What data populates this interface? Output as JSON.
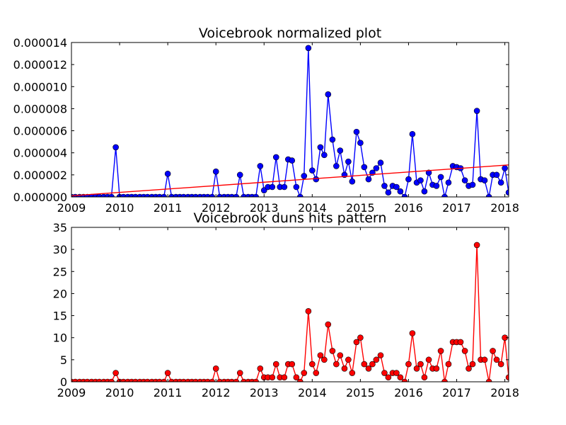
{
  "chart_data": [
    {
      "type": "line",
      "title": "Voicebrook normalized plot",
      "xlabel": "",
      "ylabel": "",
      "xlim": [
        2009.0,
        2018.08
      ],
      "ylim": [
        0,
        1.4e-05
      ],
      "x_ticks": [
        "2009",
        "2010",
        "2011",
        "2012",
        "2013",
        "2014",
        "2015",
        "2016",
        "2017",
        "2018"
      ],
      "y_ticks": [
        "0.000000",
        "0.000002",
        "0.000004",
        "0.000006",
        "0.000008",
        "0.000010",
        "0.000012",
        "0.000014"
      ],
      "grid": false,
      "legend": "none",
      "series": [
        {
          "color": "#0000ff",
          "marker": "circle",
          "points": [
            [
              2009.0,
              0
            ],
            [
              2009.08,
              0
            ],
            [
              2009.17,
              0
            ],
            [
              2009.25,
              0
            ],
            [
              2009.33,
              0
            ],
            [
              2009.42,
              0
            ],
            [
              2009.5,
              0
            ],
            [
              2009.58,
              0
            ],
            [
              2009.67,
              0
            ],
            [
              2009.75,
              0
            ],
            [
              2009.83,
              0
            ],
            [
              2009.92,
              4.5e-06
            ],
            [
              2010.0,
              0
            ],
            [
              2010.08,
              0
            ],
            [
              2010.17,
              0
            ],
            [
              2010.25,
              0
            ],
            [
              2010.33,
              0
            ],
            [
              2010.42,
              0
            ],
            [
              2010.5,
              0
            ],
            [
              2010.58,
              0
            ],
            [
              2010.67,
              0
            ],
            [
              2010.75,
              0
            ],
            [
              2010.83,
              0
            ],
            [
              2010.92,
              0
            ],
            [
              2011.0,
              2.1e-06
            ],
            [
              2011.08,
              0
            ],
            [
              2011.17,
              0
            ],
            [
              2011.25,
              0
            ],
            [
              2011.33,
              0
            ],
            [
              2011.42,
              0
            ],
            [
              2011.5,
              0
            ],
            [
              2011.58,
              0
            ],
            [
              2011.67,
              0
            ],
            [
              2011.75,
              0
            ],
            [
              2011.83,
              0
            ],
            [
              2011.92,
              0
            ],
            [
              2012.0,
              2.3e-06
            ],
            [
              2012.08,
              0
            ],
            [
              2012.17,
              0
            ],
            [
              2012.25,
              0
            ],
            [
              2012.33,
              0
            ],
            [
              2012.42,
              0
            ],
            [
              2012.5,
              2e-06
            ],
            [
              2012.58,
              0
            ],
            [
              2012.67,
              0
            ],
            [
              2012.75,
              0
            ],
            [
              2012.83,
              0
            ],
            [
              2012.92,
              2.8e-06
            ],
            [
              2013.0,
              6e-07
            ],
            [
              2013.08,
              9e-07
            ],
            [
              2013.17,
              9e-07
            ],
            [
              2013.25,
              3.6e-06
            ],
            [
              2013.33,
              9e-07
            ],
            [
              2013.42,
              9e-07
            ],
            [
              2013.5,
              3.4e-06
            ],
            [
              2013.58,
              3.3e-06
            ],
            [
              2013.67,
              9e-07
            ],
            [
              2013.75,
              0
            ],
            [
              2013.83,
              1.9e-06
            ],
            [
              2013.92,
              1.35e-05
            ],
            [
              2014.0,
              2.4e-06
            ],
            [
              2014.08,
              1.6e-06
            ],
            [
              2014.17,
              4.5e-06
            ],
            [
              2014.25,
              3.8e-06
            ],
            [
              2014.33,
              9.3e-06
            ],
            [
              2014.42,
              5.2e-06
            ],
            [
              2014.5,
              2.8e-06
            ],
            [
              2014.58,
              4.2e-06
            ],
            [
              2014.67,
              2e-06
            ],
            [
              2014.75,
              3.2e-06
            ],
            [
              2014.83,
              1.4e-06
            ],
            [
              2014.92,
              5.9e-06
            ],
            [
              2015.0,
              4.9e-06
            ],
            [
              2015.08,
              2.7e-06
            ],
            [
              2015.17,
              1.6e-06
            ],
            [
              2015.25,
              2.2e-06
            ],
            [
              2015.33,
              2.6e-06
            ],
            [
              2015.42,
              3.1e-06
            ],
            [
              2015.5,
              1e-06
            ],
            [
              2015.58,
              4e-07
            ],
            [
              2015.67,
              1e-06
            ],
            [
              2015.75,
              9e-07
            ],
            [
              2015.83,
              5e-07
            ],
            [
              2015.92,
              0
            ],
            [
              2016.0,
              1.6e-06
            ],
            [
              2016.08,
              5.7e-06
            ],
            [
              2016.17,
              1.3e-06
            ],
            [
              2016.25,
              1.5e-06
            ],
            [
              2016.33,
              5e-07
            ],
            [
              2016.42,
              2.2e-06
            ],
            [
              2016.5,
              1.1e-06
            ],
            [
              2016.58,
              1e-06
            ],
            [
              2016.67,
              1.8e-06
            ],
            [
              2016.75,
              0
            ],
            [
              2016.83,
              1.3e-06
            ],
            [
              2016.92,
              2.8e-06
            ],
            [
              2017.0,
              2.7e-06
            ],
            [
              2017.08,
              2.6e-06
            ],
            [
              2017.17,
              1.5e-06
            ],
            [
              2017.25,
              1e-06
            ],
            [
              2017.33,
              1.1e-06
            ],
            [
              2017.42,
              7.8e-06
            ],
            [
              2017.5,
              1.6e-06
            ],
            [
              2017.58,
              1.5e-06
            ],
            [
              2017.67,
              0
            ],
            [
              2017.75,
              2e-06
            ],
            [
              2017.83,
              2e-06
            ],
            [
              2017.92,
              1.3e-06
            ],
            [
              2018.0,
              2.6e-06
            ],
            [
              2018.08,
              4e-07
            ]
          ]
        },
        {
          "kind": "trendline",
          "color": "#ff0000",
          "marker": "none",
          "points": [
            [
              2009.0,
              1e-07
            ],
            [
              2018.08,
              2.9e-06
            ]
          ]
        }
      ]
    },
    {
      "type": "line",
      "title": "Voicebrook duns hits pattern",
      "xlabel": "",
      "ylabel": "",
      "xlim": [
        2009.0,
        2018.08
      ],
      "ylim": [
        0,
        35
      ],
      "x_ticks": [
        "2009",
        "2010",
        "2011",
        "2012",
        "2013",
        "2014",
        "2015",
        "2016",
        "2017",
        "2018"
      ],
      "y_ticks": [
        "0",
        "5",
        "10",
        "15",
        "20",
        "25",
        "30",
        "35"
      ],
      "grid": false,
      "legend": "none",
      "series": [
        {
          "color": "#ff0000",
          "marker": "circle",
          "points": [
            [
              2009.0,
              0
            ],
            [
              2009.08,
              0
            ],
            [
              2009.17,
              0
            ],
            [
              2009.25,
              0
            ],
            [
              2009.33,
              0
            ],
            [
              2009.42,
              0
            ],
            [
              2009.5,
              0
            ],
            [
              2009.58,
              0
            ],
            [
              2009.67,
              0
            ],
            [
              2009.75,
              0
            ],
            [
              2009.83,
              0
            ],
            [
              2009.92,
              2
            ],
            [
              2010.0,
              0
            ],
            [
              2010.08,
              0
            ],
            [
              2010.17,
              0
            ],
            [
              2010.25,
              0
            ],
            [
              2010.33,
              0
            ],
            [
              2010.42,
              0
            ],
            [
              2010.5,
              0
            ],
            [
              2010.58,
              0
            ],
            [
              2010.67,
              0
            ],
            [
              2010.75,
              0
            ],
            [
              2010.83,
              0
            ],
            [
              2010.92,
              0
            ],
            [
              2011.0,
              2
            ],
            [
              2011.08,
              0
            ],
            [
              2011.17,
              0
            ],
            [
              2011.25,
              0
            ],
            [
              2011.33,
              0
            ],
            [
              2011.42,
              0
            ],
            [
              2011.5,
              0
            ],
            [
              2011.58,
              0
            ],
            [
              2011.67,
              0
            ],
            [
              2011.75,
              0
            ],
            [
              2011.83,
              0
            ],
            [
              2011.92,
              0
            ],
            [
              2012.0,
              3
            ],
            [
              2012.08,
              0
            ],
            [
              2012.17,
              0
            ],
            [
              2012.25,
              0
            ],
            [
              2012.33,
              0
            ],
            [
              2012.42,
              0
            ],
            [
              2012.5,
              2
            ],
            [
              2012.58,
              0
            ],
            [
              2012.67,
              0
            ],
            [
              2012.75,
              0
            ],
            [
              2012.83,
              0
            ],
            [
              2012.92,
              3
            ],
            [
              2013.0,
              1
            ],
            [
              2013.08,
              1
            ],
            [
              2013.17,
              1
            ],
            [
              2013.25,
              4
            ],
            [
              2013.33,
              1
            ],
            [
              2013.42,
              1
            ],
            [
              2013.5,
              4
            ],
            [
              2013.58,
              4
            ],
            [
              2013.67,
              1
            ],
            [
              2013.75,
              0
            ],
            [
              2013.83,
              2
            ],
            [
              2013.92,
              16
            ],
            [
              2014.0,
              4
            ],
            [
              2014.08,
              2
            ],
            [
              2014.17,
              6
            ],
            [
              2014.25,
              5
            ],
            [
              2014.33,
              13
            ],
            [
              2014.42,
              7
            ],
            [
              2014.5,
              4
            ],
            [
              2014.58,
              6
            ],
            [
              2014.67,
              3
            ],
            [
              2014.75,
              5
            ],
            [
              2014.83,
              2
            ],
            [
              2014.92,
              9
            ],
            [
              2015.0,
              10
            ],
            [
              2015.08,
              4
            ],
            [
              2015.17,
              3
            ],
            [
              2015.25,
              4
            ],
            [
              2015.33,
              5
            ],
            [
              2015.42,
              6
            ],
            [
              2015.5,
              2
            ],
            [
              2015.58,
              1
            ],
            [
              2015.67,
              2
            ],
            [
              2015.75,
              2
            ],
            [
              2015.83,
              1
            ],
            [
              2015.92,
              0
            ],
            [
              2016.0,
              4
            ],
            [
              2016.08,
              11
            ],
            [
              2016.17,
              3
            ],
            [
              2016.25,
              4
            ],
            [
              2016.33,
              1
            ],
            [
              2016.42,
              5
            ],
            [
              2016.5,
              3
            ],
            [
              2016.58,
              3
            ],
            [
              2016.67,
              7
            ],
            [
              2016.75,
              0
            ],
            [
              2016.83,
              4
            ],
            [
              2016.92,
              9
            ],
            [
              2017.0,
              9
            ],
            [
              2017.08,
              9
            ],
            [
              2017.17,
              7
            ],
            [
              2017.25,
              3
            ],
            [
              2017.33,
              4
            ],
            [
              2017.42,
              31
            ],
            [
              2017.5,
              5
            ],
            [
              2017.58,
              5
            ],
            [
              2017.67,
              0
            ],
            [
              2017.75,
              7
            ],
            [
              2017.83,
              5
            ],
            [
              2017.92,
              4
            ],
            [
              2018.0,
              10
            ],
            [
              2018.08,
              1
            ]
          ]
        }
      ]
    }
  ]
}
